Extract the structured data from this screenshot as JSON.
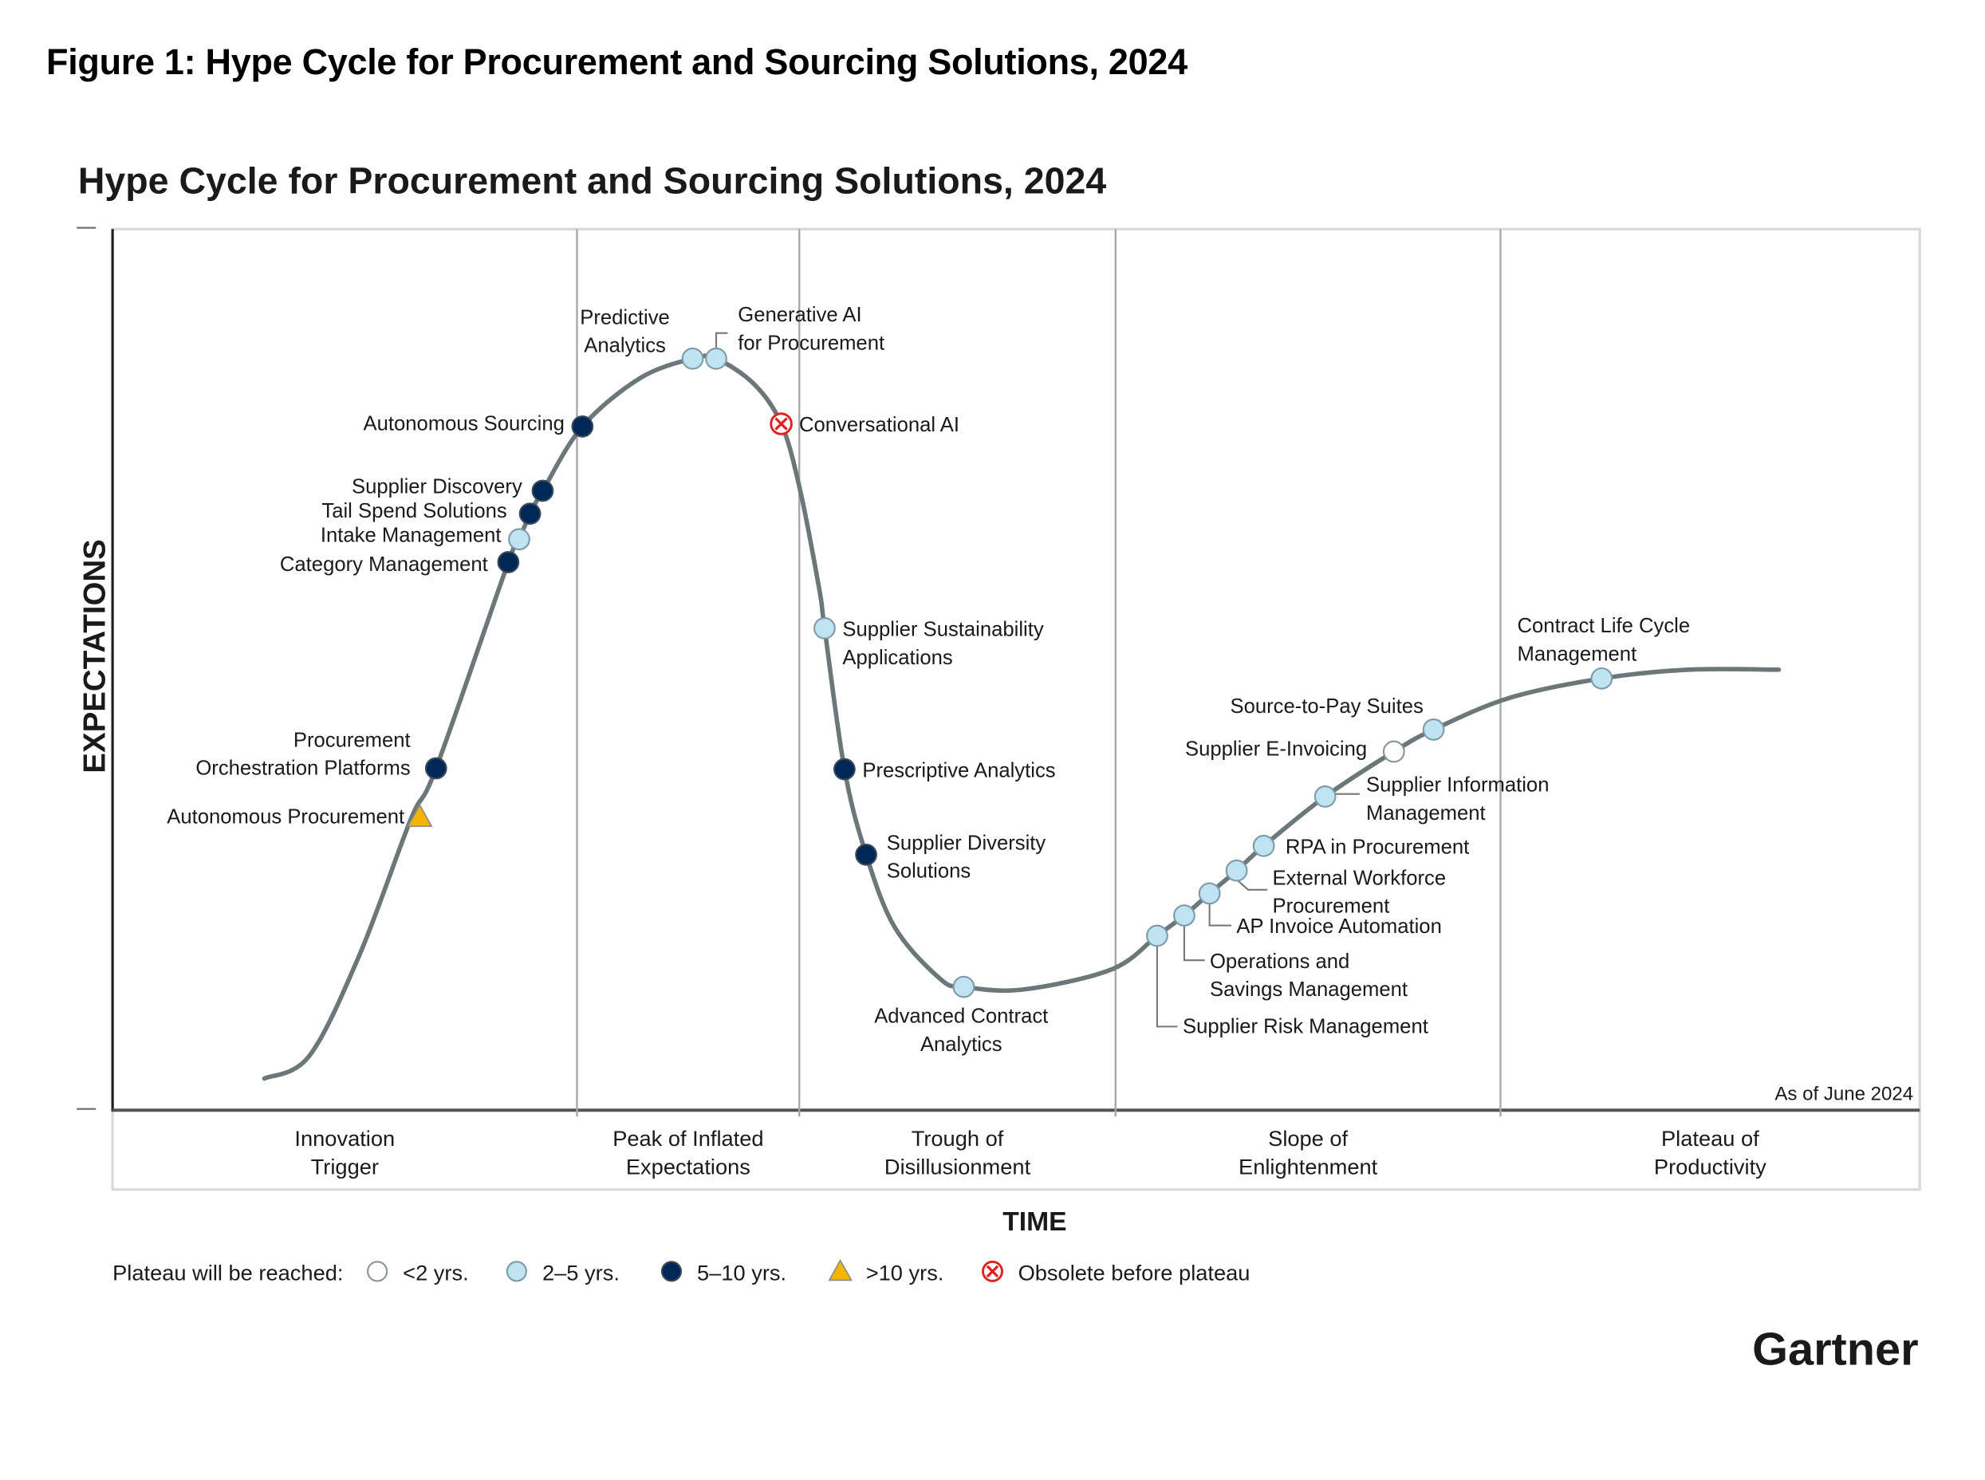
{
  "figure_title": "Figure 1: Hype Cycle for Procurement and Sourcing Solutions, 2024",
  "brand": "Gartner",
  "chart_data": {
    "type": "line",
    "title": "Hype Cycle for Procurement and Sourcing Solutions, 2024",
    "xlabel": "TIME",
    "ylabel": "EXPECTATIONS",
    "as_of": "As of June 2024",
    "grid": false,
    "phases": [
      {
        "name": "Innovation Trigger",
        "lines": [
          "Innovation",
          "Trigger"
        ],
        "x_end": 0.257
      },
      {
        "name": "Peak of Inflated Expectations",
        "lines": [
          "Peak of Inflated",
          "Expectations"
        ],
        "x_end": 0.38
      },
      {
        "name": "Trough of Disillusionment",
        "lines": [
          "Trough of",
          "Disillusionment"
        ],
        "x_end": 0.555
      },
      {
        "name": "Slope of Enlightenment",
        "lines": [
          "Slope of",
          "Enlightenment"
        ],
        "x_end": 0.768
      },
      {
        "name": "Plateau of Productivity",
        "lines": [
          "Plateau of",
          "Productivity"
        ],
        "x_end": 1.0
      }
    ],
    "curve": [
      [
        0.084,
        0.036
      ],
      [
        0.109,
        0.062
      ],
      [
        0.137,
        0.178
      ],
      [
        0.165,
        0.33
      ],
      [
        0.179,
        0.388
      ],
      [
        0.219,
        0.622
      ],
      [
        0.225,
        0.648
      ],
      [
        0.231,
        0.677
      ],
      [
        0.238,
        0.703
      ],
      [
        0.26,
        0.776
      ],
      [
        0.292,
        0.831
      ],
      [
        0.321,
        0.853
      ],
      [
        0.334,
        0.853
      ],
      [
        0.355,
        0.824
      ],
      [
        0.37,
        0.779
      ],
      [
        0.38,
        0.708
      ],
      [
        0.391,
        0.592
      ],
      [
        0.394,
        0.547
      ],
      [
        0.405,
        0.387
      ],
      [
        0.417,
        0.29
      ],
      [
        0.433,
        0.207
      ],
      [
        0.458,
        0.149
      ],
      [
        0.471,
        0.14
      ],
      [
        0.504,
        0.137
      ],
      [
        0.553,
        0.16
      ],
      [
        0.578,
        0.198
      ],
      [
        0.593,
        0.221
      ],
      [
        0.607,
        0.246
      ],
      [
        0.622,
        0.272
      ],
      [
        0.637,
        0.3
      ],
      [
        0.671,
        0.356
      ],
      [
        0.709,
        0.407
      ],
      [
        0.731,
        0.432
      ],
      [
        0.773,
        0.468
      ],
      [
        0.824,
        0.49
      ],
      [
        0.872,
        0.5
      ],
      [
        0.922,
        0.5
      ]
    ],
    "legend": {
      "label": "Plateau will be reached:",
      "placement": "bottom-left",
      "items": [
        {
          "key": "lt2",
          "label": "<2 yrs.",
          "shape": "circle",
          "fill": "#ffffff",
          "stroke": "#8a9496"
        },
        {
          "key": "2to5",
          "label": "2–5 yrs.",
          "shape": "circle",
          "fill": "#bfe3f2",
          "stroke": "#7c9aa6"
        },
        {
          "key": "5to10",
          "label": "5–10 yrs.",
          "shape": "circle",
          "fill": "#002856",
          "stroke": "#3b4a5a"
        },
        {
          "key": "gt10",
          "label": ">10 yrs.",
          "shape": "triangle",
          "fill": "#f4b400",
          "stroke": "#8a8a8a"
        },
        {
          "key": "obsolete",
          "label": "Obsolete before plateau",
          "shape": "x-circle",
          "fill": "#ffffff",
          "stroke": "#e0201b"
        }
      ]
    },
    "points": [
      {
        "name": "Autonomous Procurement",
        "lines": [
          "Autonomous Procurement"
        ],
        "x": 0.17,
        "y": 0.333,
        "cat": "gt10",
        "label_side": "left"
      },
      {
        "name": "Procurement Orchestration Platforms",
        "lines": [
          "Procurement",
          "Orchestration Platforms"
        ],
        "x": 0.179,
        "y": 0.388,
        "cat": "5to10",
        "label_side": "left"
      },
      {
        "name": "Category Management",
        "lines": [
          "Category Management"
        ],
        "x": 0.219,
        "y": 0.622,
        "cat": "5to10",
        "label_side": "left"
      },
      {
        "name": "Intake Management",
        "lines": [
          "Intake Management"
        ],
        "x": 0.225,
        "y": 0.648,
        "cat": "2to5",
        "label_side": "left"
      },
      {
        "name": "Tail Spend Solutions",
        "lines": [
          "Tail Spend Solutions"
        ],
        "x": 0.231,
        "y": 0.677,
        "cat": "5to10",
        "label_side": "left"
      },
      {
        "name": "Supplier Discovery",
        "lines": [
          "Supplier Discovery"
        ],
        "x": 0.238,
        "y": 0.703,
        "cat": "5to10",
        "label_side": "left"
      },
      {
        "name": "Autonomous Sourcing",
        "lines": [
          "Autonomous Sourcing"
        ],
        "x": 0.26,
        "y": 0.776,
        "cat": "5to10",
        "label_side": "left"
      },
      {
        "name": "Predictive Analytics",
        "lines": [
          "Predictive",
          "Analytics"
        ],
        "x": 0.321,
        "y": 0.853,
        "cat": "2to5",
        "label_side": "above-left"
      },
      {
        "name": "Generative AI for Procurement",
        "lines": [
          "Generative AI",
          "for Procurement"
        ],
        "x": 0.334,
        "y": 0.853,
        "cat": "2to5",
        "label_side": "above-right"
      },
      {
        "name": "Conversational AI",
        "lines": [
          "Conversational AI"
        ],
        "x": 0.37,
        "y": 0.779,
        "cat": "obsolete",
        "label_side": "right"
      },
      {
        "name": "Supplier Sustainability Applications",
        "lines": [
          "Supplier Sustainability",
          "Applications"
        ],
        "x": 0.394,
        "y": 0.547,
        "cat": "2to5",
        "label_side": "right"
      },
      {
        "name": "Prescriptive Analytics",
        "lines": [
          "Prescriptive Analytics"
        ],
        "x": 0.405,
        "y": 0.387,
        "cat": "5to10",
        "label_side": "right"
      },
      {
        "name": "Supplier Diversity Solutions",
        "lines": [
          "Supplier Diversity",
          "Solutions"
        ],
        "x": 0.417,
        "y": 0.29,
        "cat": "5to10",
        "label_side": "right"
      },
      {
        "name": "Advanced Contract Analytics",
        "lines": [
          "Advanced Contract",
          "Analytics"
        ],
        "x": 0.471,
        "y": 0.14,
        "cat": "2to5",
        "label_side": "below"
      },
      {
        "name": "Supplier Risk Management",
        "lines": [
          "Supplier Risk Management"
        ],
        "x": 0.578,
        "y": 0.198,
        "cat": "2to5",
        "label_side": "leader-below"
      },
      {
        "name": "Operations and Savings Management",
        "lines": [
          "Operations and",
          "Savings Management"
        ],
        "x": 0.593,
        "y": 0.221,
        "cat": "2to5",
        "label_side": "leader-below"
      },
      {
        "name": "AP Invoice Automation",
        "lines": [
          "AP Invoice Automation"
        ],
        "x": 0.607,
        "y": 0.246,
        "cat": "2to5",
        "label_side": "leader-below"
      },
      {
        "name": "External Workforce Procurement",
        "lines": [
          "External Workforce",
          "Procurement"
        ],
        "x": 0.622,
        "y": 0.272,
        "cat": "2to5",
        "label_side": "leader-right"
      },
      {
        "name": "RPA in Procurement",
        "lines": [
          "RPA in Procurement"
        ],
        "x": 0.637,
        "y": 0.3,
        "cat": "2to5",
        "label_side": "right"
      },
      {
        "name": "Supplier Information Management",
        "lines": [
          "Supplier Information",
          "Management"
        ],
        "x": 0.671,
        "y": 0.356,
        "cat": "2to5",
        "label_side": "leader-right"
      },
      {
        "name": "Supplier E-Invoicing",
        "lines": [
          "Supplier E-Invoicing"
        ],
        "x": 0.709,
        "y": 0.407,
        "cat": "lt2",
        "label_side": "left"
      },
      {
        "name": "Source-to-Pay Suites",
        "lines": [
          "Source-to-Pay Suites"
        ],
        "x": 0.731,
        "y": 0.432,
        "cat": "2to5",
        "label_side": "above-left"
      },
      {
        "name": "Contract Life Cycle Management",
        "lines": [
          "Contract Life Cycle",
          "Management"
        ],
        "x": 0.824,
        "y": 0.49,
        "cat": "2to5",
        "label_side": "above-left"
      }
    ]
  }
}
